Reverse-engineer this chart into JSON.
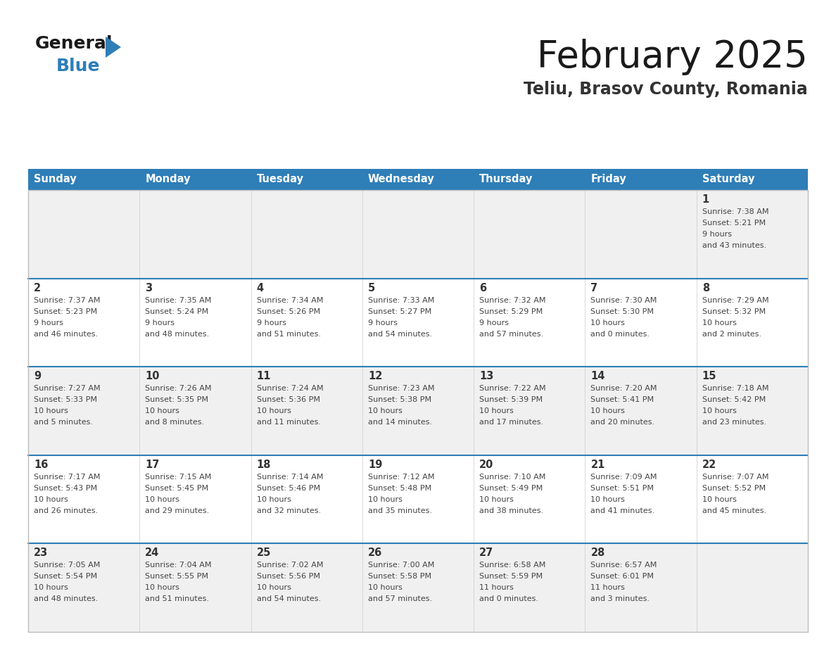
{
  "title": "February 2025",
  "subtitle": "Teliu, Brasov County, Romania",
  "header_bg": "#2E7EB8",
  "header_text": "#FFFFFF",
  "day_names": [
    "Sunday",
    "Monday",
    "Tuesday",
    "Wednesday",
    "Thursday",
    "Friday",
    "Saturday"
  ],
  "cell_bg_odd": "#F0F0F0",
  "cell_bg_even": "#FFFFFF",
  "separator_color": "#2E7EB8",
  "number_color": "#333333",
  "text_color": "#444444",
  "logo_general_color": "#1a1a1a",
  "logo_blue_color": "#2E7EB8",
  "logo_triangle_color": "#2E7EB8",
  "days": [
    {
      "day": 1,
      "col": 6,
      "row": 0,
      "sunrise": "7:38 AM",
      "sunset": "5:21 PM",
      "daylight": "9 hours and 43 minutes."
    },
    {
      "day": 2,
      "col": 0,
      "row": 1,
      "sunrise": "7:37 AM",
      "sunset": "5:23 PM",
      "daylight": "9 hours and 46 minutes."
    },
    {
      "day": 3,
      "col": 1,
      "row": 1,
      "sunrise": "7:35 AM",
      "sunset": "5:24 PM",
      "daylight": "9 hours and 48 minutes."
    },
    {
      "day": 4,
      "col": 2,
      "row": 1,
      "sunrise": "7:34 AM",
      "sunset": "5:26 PM",
      "daylight": "9 hours and 51 minutes."
    },
    {
      "day": 5,
      "col": 3,
      "row": 1,
      "sunrise": "7:33 AM",
      "sunset": "5:27 PM",
      "daylight": "9 hours and 54 minutes."
    },
    {
      "day": 6,
      "col": 4,
      "row": 1,
      "sunrise": "7:32 AM",
      "sunset": "5:29 PM",
      "daylight": "9 hours and 57 minutes."
    },
    {
      "day": 7,
      "col": 5,
      "row": 1,
      "sunrise": "7:30 AM",
      "sunset": "5:30 PM",
      "daylight": "10 hours and 0 minutes."
    },
    {
      "day": 8,
      "col": 6,
      "row": 1,
      "sunrise": "7:29 AM",
      "sunset": "5:32 PM",
      "daylight": "10 hours and 2 minutes."
    },
    {
      "day": 9,
      "col": 0,
      "row": 2,
      "sunrise": "7:27 AM",
      "sunset": "5:33 PM",
      "daylight": "10 hours and 5 minutes."
    },
    {
      "day": 10,
      "col": 1,
      "row": 2,
      "sunrise": "7:26 AM",
      "sunset": "5:35 PM",
      "daylight": "10 hours and 8 minutes."
    },
    {
      "day": 11,
      "col": 2,
      "row": 2,
      "sunrise": "7:24 AM",
      "sunset": "5:36 PM",
      "daylight": "10 hours and 11 minutes."
    },
    {
      "day": 12,
      "col": 3,
      "row": 2,
      "sunrise": "7:23 AM",
      "sunset": "5:38 PM",
      "daylight": "10 hours and 14 minutes."
    },
    {
      "day": 13,
      "col": 4,
      "row": 2,
      "sunrise": "7:22 AM",
      "sunset": "5:39 PM",
      "daylight": "10 hours and 17 minutes."
    },
    {
      "day": 14,
      "col": 5,
      "row": 2,
      "sunrise": "7:20 AM",
      "sunset": "5:41 PM",
      "daylight": "10 hours and 20 minutes."
    },
    {
      "day": 15,
      "col": 6,
      "row": 2,
      "sunrise": "7:18 AM",
      "sunset": "5:42 PM",
      "daylight": "10 hours and 23 minutes."
    },
    {
      "day": 16,
      "col": 0,
      "row": 3,
      "sunrise": "7:17 AM",
      "sunset": "5:43 PM",
      "daylight": "10 hours and 26 minutes."
    },
    {
      "day": 17,
      "col": 1,
      "row": 3,
      "sunrise": "7:15 AM",
      "sunset": "5:45 PM",
      "daylight": "10 hours and 29 minutes."
    },
    {
      "day": 18,
      "col": 2,
      "row": 3,
      "sunrise": "7:14 AM",
      "sunset": "5:46 PM",
      "daylight": "10 hours and 32 minutes."
    },
    {
      "day": 19,
      "col": 3,
      "row": 3,
      "sunrise": "7:12 AM",
      "sunset": "5:48 PM",
      "daylight": "10 hours and 35 minutes."
    },
    {
      "day": 20,
      "col": 4,
      "row": 3,
      "sunrise": "7:10 AM",
      "sunset": "5:49 PM",
      "daylight": "10 hours and 38 minutes."
    },
    {
      "day": 21,
      "col": 5,
      "row": 3,
      "sunrise": "7:09 AM",
      "sunset": "5:51 PM",
      "daylight": "10 hours and 41 minutes."
    },
    {
      "day": 22,
      "col": 6,
      "row": 3,
      "sunrise": "7:07 AM",
      "sunset": "5:52 PM",
      "daylight": "10 hours and 45 minutes."
    },
    {
      "day": 23,
      "col": 0,
      "row": 4,
      "sunrise": "7:05 AM",
      "sunset": "5:54 PM",
      "daylight": "10 hours and 48 minutes."
    },
    {
      "day": 24,
      "col": 1,
      "row": 4,
      "sunrise": "7:04 AM",
      "sunset": "5:55 PM",
      "daylight": "10 hours and 51 minutes."
    },
    {
      "day": 25,
      "col": 2,
      "row": 4,
      "sunrise": "7:02 AM",
      "sunset": "5:56 PM",
      "daylight": "10 hours and 54 minutes."
    },
    {
      "day": 26,
      "col": 3,
      "row": 4,
      "sunrise": "7:00 AM",
      "sunset": "5:58 PM",
      "daylight": "10 hours and 57 minutes."
    },
    {
      "day": 27,
      "col": 4,
      "row": 4,
      "sunrise": "6:58 AM",
      "sunset": "5:59 PM",
      "daylight": "11 hours and 0 minutes."
    },
    {
      "day": 28,
      "col": 5,
      "row": 4,
      "sunrise": "6:57 AM",
      "sunset": "6:01 PM",
      "daylight": "11 hours and 3 minutes."
    }
  ]
}
